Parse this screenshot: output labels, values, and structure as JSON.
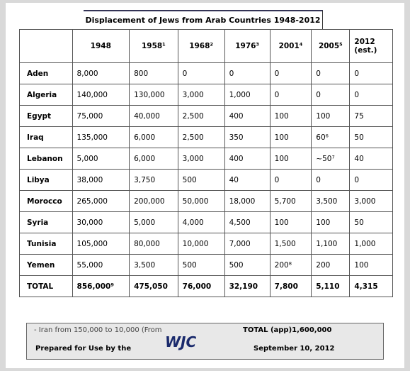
{
  "title": "Displacement of Jews from Arab Countries 1948-2012",
  "table": {
    "header": [
      "1948",
      "1958¹",
      "1968²",
      "1976³",
      "2001⁴",
      "2005⁵",
      "2012 (est.)"
    ],
    "rows": [
      [
        "Aden",
        "8,000",
        "800",
        "0",
        "0",
        "0",
        "0",
        "0"
      ],
      [
        "Algeria",
        "140,000",
        "130,000",
        "3,000",
        "1,000",
        "0",
        "0",
        "0"
      ],
      [
        "Egypt",
        "75,000",
        "40,000",
        "2,500",
        "400",
        "100",
        "100",
        "75"
      ],
      [
        "Iraq",
        "135,000",
        "6,000",
        "2,500",
        "350",
        "100",
        "60⁶",
        "50"
      ],
      [
        "Lebanon",
        "5,000",
        "6,000",
        "3,000",
        "400",
        "100",
        "~50⁷",
        "40"
      ],
      [
        "Libya",
        "38,000",
        "3,750",
        "500",
        "40",
        "0",
        "0",
        "0"
      ],
      [
        "Morocco",
        "265,000",
        "200,000",
        "50,000",
        "18,000",
        "5,700",
        "3,500",
        "3,000"
      ],
      [
        "Syria",
        "30,000",
        "5,000",
        "4,000",
        "4,500",
        "100",
        "100",
        "50"
      ],
      [
        "Tunisia",
        "105,000",
        "80,000",
        "10,000",
        "7,000",
        "1,500",
        "1,100",
        "1,000"
      ],
      [
        "Yemen",
        "55,000",
        "3,500",
        "500",
        "500",
        "200⁸",
        "200",
        "100"
      ],
      [
        "TOTAL",
        "856,000⁹",
        "475,050",
        "76,000",
        "32,190",
        "7,800",
        "5,110",
        "4,315"
      ]
    ]
  },
  "footer": {
    "note": "- Iran from 150,000 to 10,000 (From",
    "total": "TOTAL (app)1,600,000",
    "prepared": "Prepared for Use by the",
    "logo": "WJC",
    "date": "September 10, 2012"
  }
}
